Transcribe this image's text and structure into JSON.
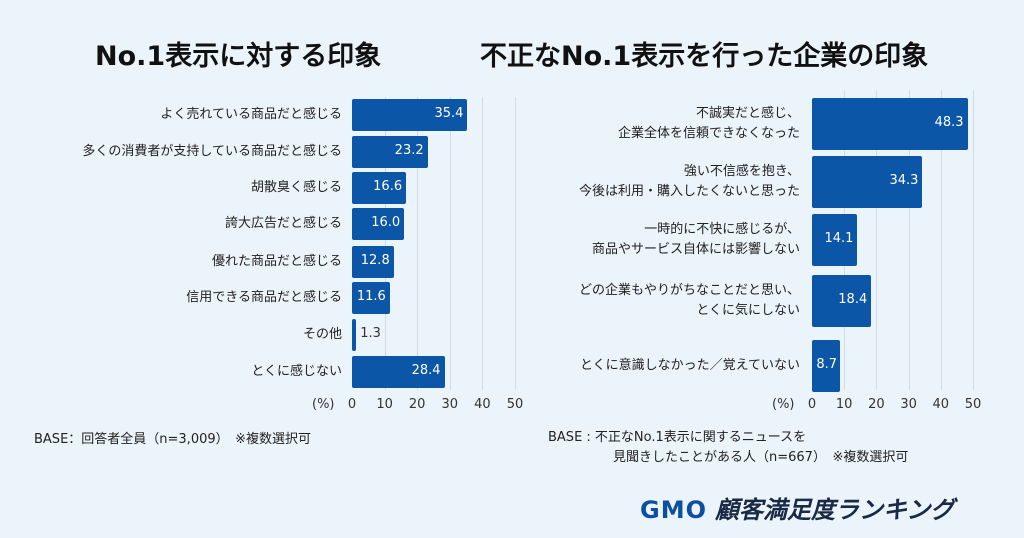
{
  "chart_data": [
    {
      "type": "bar",
      "orientation": "horizontal",
      "title": "No.1表示に対する印象",
      "unit_label": "(%)",
      "categories": [
        "よく売れている商品だと感じる",
        "多くの消費者が支持している商品だと感じる",
        "胡散臭く感じる",
        "誇大広告だと感じる",
        "優れた商品だと感じる",
        "信用できる商品だと感じる",
        "その他",
        "とくに感じない"
      ],
      "values": [
        35.4,
        23.2,
        16.6,
        16.0,
        12.8,
        11.6,
        1.3,
        28.4
      ],
      "value_labels": [
        "35.4",
        "23.2",
        "16.6",
        "16.0",
        "12.8",
        "11.6",
        "1.3",
        "28.4"
      ],
      "xlim": [
        0,
        50
      ],
      "xticks": [
        "0",
        "10",
        "20",
        "30",
        "40",
        "50"
      ],
      "grid": true,
      "base_note": "BASE：回答者全員（n=3,009）　※複数選択可"
    },
    {
      "type": "bar",
      "orientation": "horizontal",
      "title": "不正なNo.1表示を行った企業の印象",
      "unit_label": "(%)",
      "categories": [
        "不誠実だと感じ、\n企業全体を信頼できなくなった",
        "強い不信感を抱き、\n今後は利用・購入したくないと思った",
        "一時的に不快に感じるが、\n商品やサービス自体には影響しない",
        "どの企業もやりがちなことだと思い、\nとくに気にしない",
        "とくに意識しなかった／覚えていない"
      ],
      "values": [
        48.3,
        34.3,
        14.1,
        18.4,
        8.7
      ],
      "value_labels": [
        "48.3",
        "34.3",
        "14.1",
        "18.4",
        "8.7"
      ],
      "xlim": [
        0,
        50
      ],
      "xticks": [
        "0",
        "10",
        "20",
        "30",
        "40",
        "50"
      ],
      "grid": true,
      "base_note": "BASE : 不正なNo.1表示に関するニュースを\n　　　　　見聞きしたことがある人（n=667）　※複数選択可"
    }
  ],
  "logo": {
    "brand": "GMO",
    "text": "顧客満足度ランキング"
  },
  "colors": {
    "bar": "#0c56a8",
    "background": "#ebf3fb"
  }
}
